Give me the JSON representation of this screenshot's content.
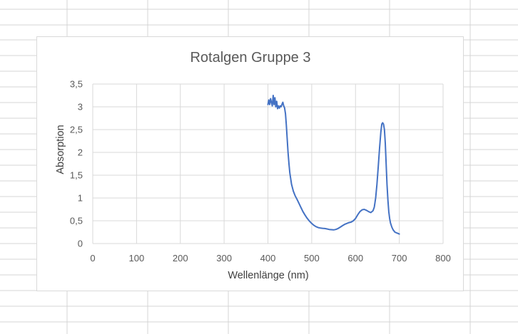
{
  "colors": {
    "sheet_grid": "#d4d4d4",
    "plot_grid": "#d9d9d9",
    "series_line": "#4472c4",
    "text": "#595959"
  },
  "chart_data": {
    "type": "line",
    "title": "Rotalgen Gruppe 3",
    "xlabel": "Wellenlänge (nm)",
    "ylabel": "Absorption",
    "xlim": [
      0,
      800
    ],
    "ylim": [
      0,
      3.5
    ],
    "x_ticks": [
      "0",
      "100",
      "200",
      "300",
      "400",
      "500",
      "600",
      "700",
      "800"
    ],
    "y_ticks": [
      "0",
      "0,5",
      "1",
      "1,5",
      "2",
      "2,5",
      "3",
      "3,5"
    ],
    "grid": true,
    "legend": "none",
    "series": [
      {
        "x": [
          400,
          402,
          404,
          406,
          408,
          410,
          412,
          414,
          416,
          418,
          420,
          422,
          424,
          426,
          428,
          430,
          432,
          434,
          436,
          438,
          440,
          442,
          444,
          446,
          448,
          450,
          454,
          458,
          462,
          466,
          470,
          475,
          480,
          485,
          490,
          495,
          500,
          505,
          510,
          515,
          520,
          525,
          530,
          535,
          540,
          545,
          550,
          555,
          560,
          565,
          570,
          575,
          580,
          585,
          590,
          595,
          600,
          605,
          610,
          615,
          620,
          625,
          630,
          635,
          640,
          643,
          646,
          649,
          652,
          655,
          658,
          660,
          662,
          664,
          666,
          668,
          670,
          672,
          674,
          676,
          678,
          680,
          683,
          686,
          690,
          695,
          700
        ],
        "y": [
          3.05,
          3.15,
          3.05,
          3.18,
          3.1,
          3.02,
          3.25,
          3.05,
          3.2,
          3.0,
          3.12,
          2.96,
          3.02,
          2.97,
          3.02,
          3.0,
          3.05,
          3.1,
          3.02,
          2.98,
          2.85,
          2.6,
          2.3,
          2.0,
          1.75,
          1.55,
          1.3,
          1.15,
          1.05,
          0.98,
          0.9,
          0.8,
          0.7,
          0.62,
          0.55,
          0.49,
          0.44,
          0.4,
          0.37,
          0.35,
          0.34,
          0.335,
          0.33,
          0.32,
          0.31,
          0.305,
          0.3,
          0.31,
          0.33,
          0.36,
          0.39,
          0.42,
          0.44,
          0.46,
          0.47,
          0.5,
          0.55,
          0.63,
          0.7,
          0.74,
          0.75,
          0.73,
          0.7,
          0.68,
          0.72,
          0.8,
          1.0,
          1.3,
          1.7,
          2.1,
          2.45,
          2.62,
          2.65,
          2.62,
          2.5,
          2.2,
          1.75,
          1.3,
          0.95,
          0.7,
          0.55,
          0.45,
          0.36,
          0.3,
          0.25,
          0.23,
          0.21
        ]
      }
    ]
  }
}
